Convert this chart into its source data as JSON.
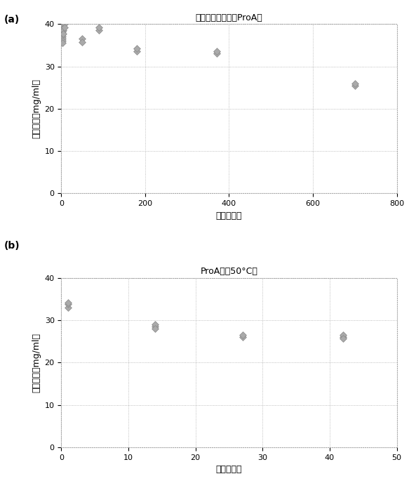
{
  "plot_a": {
    "title": "室温で貯蔵されたProA膜",
    "xlabel": "時間（日）",
    "ylabel": "結合容量（mg/ml）",
    "xlim": [
      0,
      800
    ],
    "ylim": [
      0,
      40
    ],
    "xticks": [
      0,
      200,
      400,
      600,
      800
    ],
    "yticks": [
      0,
      10,
      20,
      30,
      40
    ],
    "data_points": [
      [
        2,
        39.5
      ],
      [
        2,
        38.8
      ],
      [
        2,
        38.2
      ],
      [
        2,
        37.5
      ],
      [
        2,
        37.0
      ],
      [
        2,
        36.5
      ],
      [
        2,
        36.0
      ],
      [
        2,
        35.5
      ],
      [
        5,
        38.5
      ],
      [
        5,
        37.8
      ],
      [
        7,
        40.0
      ],
      [
        7,
        39.2
      ],
      [
        50,
        36.5
      ],
      [
        50,
        35.8
      ],
      [
        90,
        38.5
      ],
      [
        90,
        39.2
      ],
      [
        180,
        33.5
      ],
      [
        180,
        34.2
      ],
      [
        370,
        33.0
      ],
      [
        370,
        33.6
      ],
      [
        700,
        25.5
      ],
      [
        700,
        26.0
      ]
    ]
  },
  "plot_b": {
    "title": "ProA膜（50°C）",
    "xlabel": "時間（日）",
    "ylabel": "結合容量（mg/ml）",
    "xlim": [
      0,
      50
    ],
    "ylim": [
      0,
      40
    ],
    "xticks": [
      0,
      10,
      20,
      30,
      40,
      50
    ],
    "yticks": [
      0,
      10,
      20,
      30,
      40
    ],
    "data_points": [
      [
        1,
        33.0
      ],
      [
        1,
        33.8
      ],
      [
        1,
        34.2
      ],
      [
        14,
        28.5
      ],
      [
        14,
        29.0
      ],
      [
        14,
        28.0
      ],
      [
        27,
        26.0
      ],
      [
        27,
        26.5
      ],
      [
        42,
        26.0
      ],
      [
        42,
        26.5
      ],
      [
        42,
        25.8
      ]
    ]
  },
  "marker": "D",
  "marker_size": 5,
  "marker_color": "#aaaaaa",
  "marker_edge_color": "#888888",
  "grid_color": "#aaaaaa",
  "grid_linestyle": ":",
  "box_linestyle": ":",
  "box_color": "#aaaaaa",
  "bg_color": "#ffffff",
  "label_fontsize": 9,
  "title_fontsize": 9,
  "tick_fontsize": 8
}
